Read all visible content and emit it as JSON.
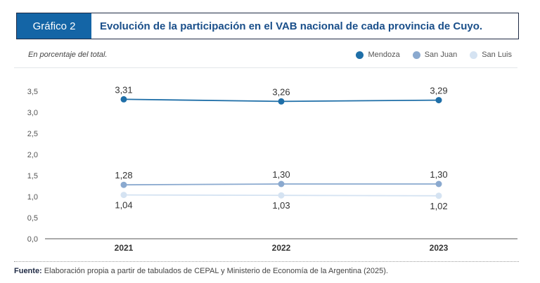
{
  "header": {
    "tag": "Gráfico 2",
    "title": "Evolución de la participación en el VAB nacional de cada provincia de Cuyo."
  },
  "subtitle": "En porcentaje del total.",
  "source": {
    "label": "Fuente:",
    "text": "Elaboración propia a partir de tabulados de CEPAL y Ministerio de Economía de la Argentina (2025)."
  },
  "chart_data": {
    "type": "line",
    "categories": [
      "2021",
      "2022",
      "2023"
    ],
    "ylim": [
      0,
      3.5
    ],
    "yticks": [
      "0,0",
      "0,5",
      "1,0",
      "1,5",
      "2,0",
      "2,5",
      "3,0",
      "3,5"
    ],
    "series": [
      {
        "name": "Mendoza",
        "color": "#1f6fa8",
        "values": [
          3.31,
          3.26,
          3.29
        ],
        "labels": [
          "3,31",
          "3,26",
          "3,29"
        ]
      },
      {
        "name": "San Juan",
        "color": "#8aa9cf",
        "values": [
          1.28,
          1.3,
          1.3
        ],
        "labels": [
          "1,28",
          "1,30",
          "1,30"
        ]
      },
      {
        "name": "San Luis",
        "color": "#d5e3f2",
        "values": [
          1.04,
          1.03,
          1.02
        ],
        "labels": [
          "1,04",
          "1,03",
          "1,02"
        ]
      }
    ]
  }
}
